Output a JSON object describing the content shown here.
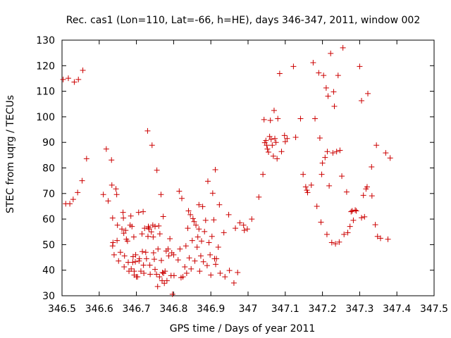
{
  "chart_data": {
    "type": "scatter",
    "title": "Rec. cas1 (Lon=110, Lat=-66, h=HE), days 346-347, 2011, window 002",
    "xlabel": "GPS time / Days of year 2011",
    "ylabel": "STEC from uqrg / TECUs",
    "xlim": [
      346.5,
      347.5
    ],
    "ylim": [
      30,
      130
    ],
    "xticks": [
      346.5,
      346.6,
      346.7,
      346.8,
      346.9,
      347,
      347.1,
      347.2,
      347.3,
      347.4,
      347.5
    ],
    "xtick_labels": [
      "346.5",
      "346.6",
      "346.7",
      "346.8",
      "346.9",
      "347",
      "347.1",
      "347.2",
      "347.3",
      "347.4",
      "347.5"
    ],
    "yticks": [
      30,
      40,
      50,
      60,
      70,
      80,
      90,
      100,
      110,
      120,
      130
    ],
    "ytick_labels": [
      "30",
      "40",
      "50",
      "60",
      "70",
      "80",
      "90",
      "100",
      "110",
      "120",
      "130"
    ],
    "grid": false,
    "marker": "plus",
    "marker_color": "#cc0000",
    "points": [
      [
        346.503,
        114.6
      ],
      [
        346.51,
        66.0
      ],
      [
        346.517,
        115.1
      ],
      [
        346.521,
        66.0
      ],
      [
        346.53,
        67.7
      ],
      [
        346.533,
        113.6
      ],
      [
        346.542,
        70.4
      ],
      [
        346.544,
        114.6
      ],
      [
        346.554,
        75.0
      ],
      [
        346.556,
        118.2
      ],
      [
        346.566,
        83.6
      ],
      [
        346.611,
        69.6
      ],
      [
        346.619,
        87.4
      ],
      [
        346.624,
        67.1
      ],
      [
        346.633,
        83.1
      ],
      [
        346.634,
        73.3
      ],
      [
        346.636,
        60.4
      ],
      [
        346.636,
        49.5
      ],
      [
        346.637,
        50.8
      ],
      [
        346.64,
        46.0
      ],
      [
        346.645,
        71.8
      ],
      [
        346.647,
        69.6
      ],
      [
        346.648,
        51.6
      ],
      [
        346.649,
        57.6
      ],
      [
        346.652,
        43.6
      ],
      [
        346.657,
        47.0
      ],
      [
        346.661,
        56.1
      ],
      [
        346.664,
        62.6
      ],
      [
        346.665,
        60.4
      ],
      [
        346.666,
        54.5
      ],
      [
        346.667,
        41.3
      ],
      [
        346.668,
        45.6
      ],
      [
        346.671,
        55.6
      ],
      [
        346.673,
        52.1
      ],
      [
        346.676,
        51.4
      ],
      [
        346.678,
        43.1
      ],
      [
        346.68,
        39.6
      ],
      [
        346.683,
        57.6
      ],
      [
        346.685,
        61.2
      ],
      [
        346.686,
        40.5
      ],
      [
        346.688,
        57.1
      ],
      [
        346.69,
        43.1
      ],
      [
        346.691,
        45.3
      ],
      [
        346.693,
        53.0
      ],
      [
        346.694,
        39.6
      ],
      [
        346.694,
        38.1
      ],
      [
        346.697,
        43.3
      ],
      [
        346.698,
        46.0
      ],
      [
        346.7,
        37.4
      ],
      [
        346.703,
        37.4
      ],
      [
        346.706,
        62.6
      ],
      [
        346.707,
        43.6
      ],
      [
        346.708,
        44.5
      ],
      [
        346.712,
        39.6
      ],
      [
        346.715,
        54.2
      ],
      [
        346.716,
        47.3
      ],
      [
        346.718,
        62.9
      ],
      [
        346.719,
        42.0
      ],
      [
        346.72,
        38.8
      ],
      [
        346.722,
        56.4
      ],
      [
        346.725,
        47.0
      ],
      [
        346.727,
        44.5
      ],
      [
        346.73,
        94.5
      ],
      [
        346.731,
        53.2
      ],
      [
        346.732,
        57.1
      ],
      [
        346.733,
        56.6
      ],
      [
        346.734,
        56.1
      ],
      [
        346.736,
        42.0
      ],
      [
        346.737,
        38.4
      ],
      [
        346.74,
        55.0
      ],
      [
        346.742,
        88.9
      ],
      [
        346.744,
        57.6
      ],
      [
        346.745,
        53.0
      ],
      [
        346.746,
        46.8
      ],
      [
        346.748,
        44.3
      ],
      [
        346.75,
        57.1
      ],
      [
        346.75,
        40.3
      ],
      [
        346.754,
        38.4
      ],
      [
        346.755,
        79.1
      ],
      [
        346.757,
        33.6
      ],
      [
        346.758,
        48.3
      ],
      [
        346.76,
        57.3
      ],
      [
        346.762,
        37.4
      ],
      [
        346.763,
        54.2
      ],
      [
        346.766,
        69.6
      ],
      [
        346.767,
        43.8
      ],
      [
        346.769,
        35.9
      ],
      [
        346.77,
        39.1
      ],
      [
        346.772,
        61.0
      ],
      [
        346.773,
        38.8
      ],
      [
        346.775,
        34.9
      ],
      [
        346.777,
        39.6
      ],
      [
        346.78,
        47.5
      ],
      [
        346.782,
        35.9
      ],
      [
        346.785,
        48.3
      ],
      [
        346.787,
        45.6
      ],
      [
        346.79,
        52.3
      ],
      [
        346.793,
        37.9
      ],
      [
        346.795,
        46.8
      ],
      [
        346.797,
        30.6
      ],
      [
        346.8,
        46.0
      ],
      [
        346.801,
        37.9
      ],
      [
        346.812,
        44.0
      ],
      [
        346.815,
        70.9
      ],
      [
        346.817,
        48.3
      ],
      [
        346.82,
        37.1
      ],
      [
        346.822,
        68.1
      ],
      [
        346.825,
        37.4
      ],
      [
        346.83,
        41.3
      ],
      [
        346.833,
        49.5
      ],
      [
        346.835,
        38.8
      ],
      [
        346.838,
        56.4
      ],
      [
        346.84,
        63.2
      ],
      [
        346.842,
        44.8
      ],
      [
        346.845,
        61.7
      ],
      [
        346.847,
        40.5
      ],
      [
        346.85,
        51.6
      ],
      [
        346.852,
        60.2
      ],
      [
        346.855,
        59.0
      ],
      [
        346.857,
        43.6
      ],
      [
        346.86,
        57.6
      ],
      [
        346.863,
        49.0
      ],
      [
        346.865,
        53.0
      ],
      [
        346.868,
        65.6
      ],
      [
        346.868,
        56.1
      ],
      [
        346.87,
        39.6
      ],
      [
        346.873,
        45.6
      ],
      [
        346.875,
        51.4
      ],
      [
        346.878,
        64.9
      ],
      [
        346.88,
        43.3
      ],
      [
        346.883,
        55.1
      ],
      [
        346.886,
        59.5
      ],
      [
        346.89,
        41.8
      ],
      [
        346.892,
        74.8
      ],
      [
        346.895,
        50.8
      ],
      [
        346.898,
        46.0
      ],
      [
        346.9,
        38.1
      ],
      [
        346.903,
        53.2
      ],
      [
        346.905,
        70.1
      ],
      [
        346.908,
        59.7
      ],
      [
        346.91,
        44.5
      ],
      [
        346.912,
        79.3
      ],
      [
        346.913,
        42.3
      ],
      [
        346.915,
        44.5
      ],
      [
        346.92,
        49.0
      ],
      [
        346.923,
        65.6
      ],
      [
        346.925,
        38.8
      ],
      [
        346.935,
        54.7
      ],
      [
        346.938,
        37.4
      ],
      [
        346.948,
        61.7
      ],
      [
        346.95,
        39.9
      ],
      [
        346.962,
        35.0
      ],
      [
        346.966,
        56.4
      ],
      [
        346.972,
        39.1
      ],
      [
        346.978,
        58.5
      ],
      [
        346.988,
        57.6
      ],
      [
        346.99,
        55.6
      ],
      [
        346.998,
        56.1
      ],
      [
        347.01,
        60.0
      ],
      [
        347.029,
        68.6
      ],
      [
        347.04,
        77.5
      ],
      [
        347.043,
        98.9
      ],
      [
        347.045,
        89.9
      ],
      [
        347.048,
        90.7
      ],
      [
        347.05,
        88.9
      ],
      [
        347.052,
        87.4
      ],
      [
        347.055,
        86.2
      ],
      [
        347.058,
        92.3
      ],
      [
        347.06,
        98.6
      ],
      [
        347.062,
        91.2
      ],
      [
        347.065,
        88.9
      ],
      [
        347.068,
        84.6
      ],
      [
        347.07,
        102.5
      ],
      [
        347.072,
        91.5
      ],
      [
        347.075,
        90.0
      ],
      [
        347.078,
        83.6
      ],
      [
        347.08,
        99.3
      ],
      [
        347.085,
        116.9
      ],
      [
        347.09,
        86.4
      ],
      [
        347.098,
        92.7
      ],
      [
        347.1,
        90.3
      ],
      [
        347.105,
        91.5
      ],
      [
        347.122,
        119.7
      ],
      [
        347.128,
        92.0
      ],
      [
        347.141,
        99.3
      ],
      [
        347.148,
        77.5
      ],
      [
        347.155,
        72.6
      ],
      [
        347.158,
        71.3
      ],
      [
        347.16,
        70.4
      ],
      [
        347.17,
        73.3
      ],
      [
        347.175,
        121.2
      ],
      [
        347.18,
        99.3
      ],
      [
        347.185,
        65.0
      ],
      [
        347.19,
        117.2
      ],
      [
        347.193,
        91.7
      ],
      [
        347.196,
        58.8
      ],
      [
        347.198,
        77.5
      ],
      [
        347.2,
        81.9
      ],
      [
        347.203,
        116.2
      ],
      [
        347.207,
        84.1
      ],
      [
        347.21,
        111.3
      ],
      [
        347.212,
        54.0
      ],
      [
        347.213,
        86.4
      ],
      [
        347.215,
        108.1
      ],
      [
        347.218,
        73.0
      ],
      [
        347.222,
        124.8
      ],
      [
        347.225,
        50.8
      ],
      [
        347.228,
        85.9
      ],
      [
        347.23,
        109.8
      ],
      [
        347.232,
        104.1
      ],
      [
        347.235,
        50.3
      ],
      [
        347.238,
        86.4
      ],
      [
        347.242,
        116.2
      ],
      [
        347.245,
        51.0
      ],
      [
        347.247,
        86.9
      ],
      [
        347.252,
        76.8
      ],
      [
        347.255,
        127.0
      ],
      [
        347.258,
        54.0
      ],
      [
        347.265,
        70.6
      ],
      [
        347.268,
        54.7
      ],
      [
        347.274,
        57.1
      ],
      [
        347.277,
        62.9
      ],
      [
        347.28,
        63.2
      ],
      [
        347.283,
        59.5
      ],
      [
        347.288,
        63.5
      ],
      [
        347.291,
        63.2
      ],
      [
        347.3,
        119.7
      ],
      [
        347.305,
        60.5
      ],
      [
        347.305,
        106.3
      ],
      [
        347.31,
        69.3
      ],
      [
        347.313,
        60.9
      ],
      [
        347.317,
        71.8
      ],
      [
        347.32,
        72.6
      ],
      [
        347.322,
        109.1
      ],
      [
        347.332,
        80.4
      ],
      [
        347.333,
        69.1
      ],
      [
        347.342,
        57.8
      ],
      [
        347.345,
        88.9
      ],
      [
        347.348,
        53.2
      ],
      [
        347.356,
        52.5
      ],
      [
        347.37,
        85.9
      ],
      [
        347.376,
        52.1
      ],
      [
        347.382,
        83.9
      ]
    ]
  }
}
